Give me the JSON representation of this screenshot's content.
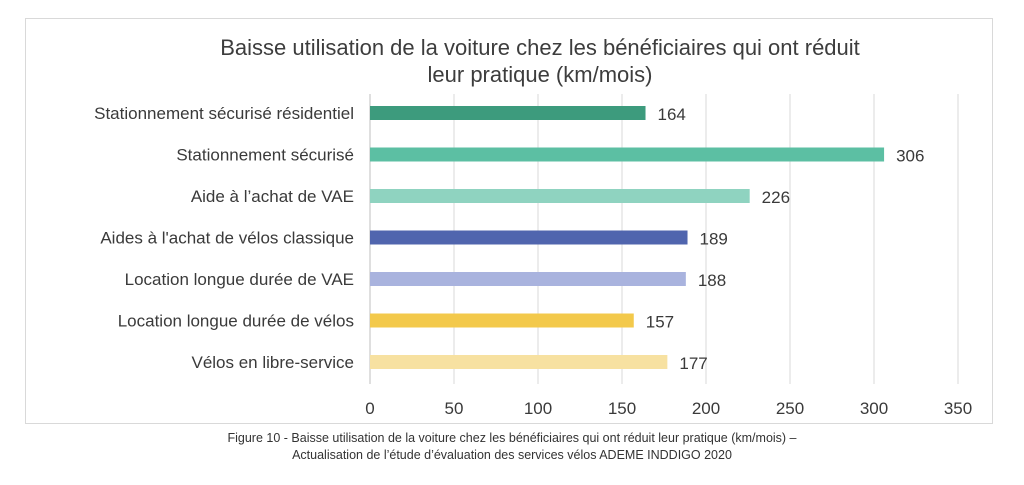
{
  "chart_data": {
    "type": "bar",
    "orientation": "horizontal",
    "title_lines": [
      "Baisse utilisation de la voiture chez les bénéficiaires qui ont réduit",
      "leur pratique (km/mois)"
    ],
    "categories": [
      "Stationnement sécurisé résidentiel",
      "Stationnement sécurisé",
      "Aide à l’achat de VAE",
      "Aides à l'achat de vélos classique",
      "Location longue durée de VAE",
      "Location longue durée de vélos",
      "Vélos en libre-service"
    ],
    "values": [
      164,
      306,
      226,
      189,
      188,
      157,
      177
    ],
    "bar_colors": [
      "#3d9b7d",
      "#5cbfa3",
      "#8fd3c0",
      "#5065ae",
      "#a9b3de",
      "#f3c94b",
      "#f7e1a1"
    ],
    "xlim": [
      0,
      350
    ],
    "xticks": [
      0,
      50,
      100,
      150,
      200,
      250,
      300,
      350
    ],
    "grid": "vertical",
    "legend": "none"
  },
  "caption": {
    "line1": "Figure 10 - Baisse utilisation de la voiture chez les bénéficiaires qui ont réduit leur pratique (km/mois) –",
    "line2": "Actualisation de l’étude d’évaluation des services vélos ADEME INDDIGO 2020"
  },
  "colors": {
    "grid": "#d9d9d9",
    "axis": "#bfbfbf"
  }
}
